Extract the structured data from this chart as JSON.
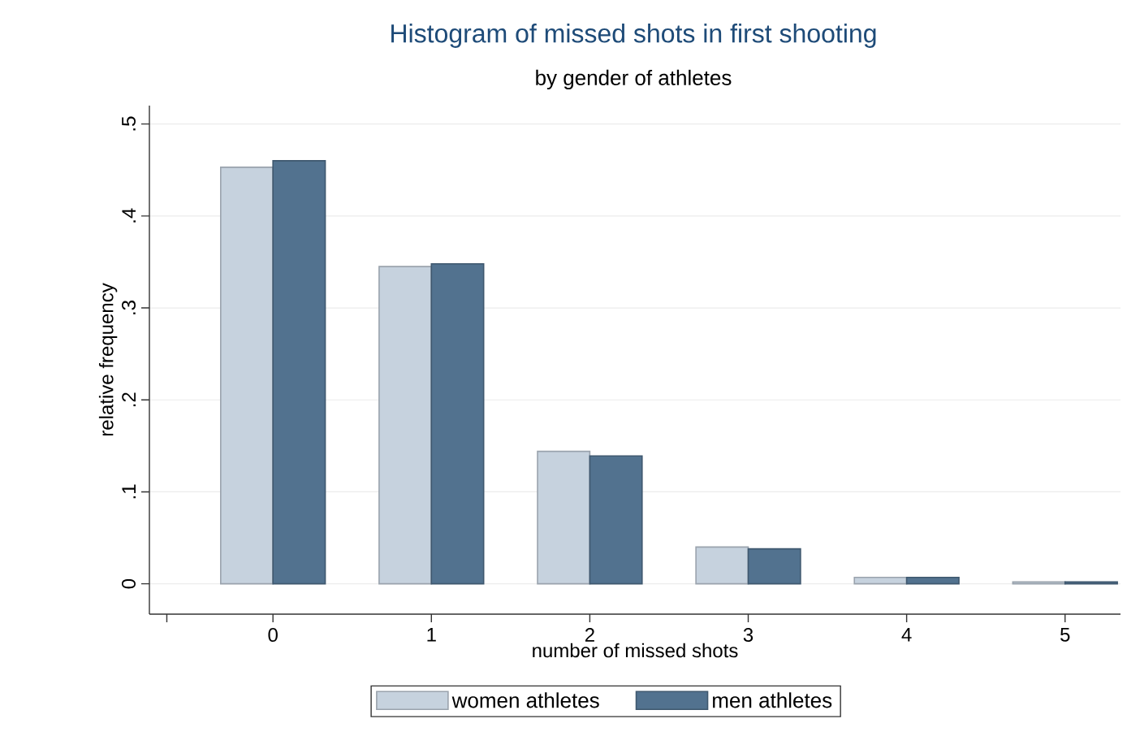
{
  "chart_data": {
    "type": "bar",
    "title": "Histogram of missed shots in first shooting",
    "subtitle": "by gender of athletes",
    "xlabel": "number of missed shots",
    "ylabel": "relative frequency",
    "x": [
      0,
      1,
      2,
      3,
      4,
      5
    ],
    "xlim": [
      -0.78,
      5.35
    ],
    "xticks": [
      {
        "value": -0.67,
        "label": null
      },
      0,
      1,
      2,
      3,
      4,
      5
    ],
    "ylim": [
      -0.033,
      0.52
    ],
    "yticks": [
      {
        "value": 0,
        "label": "0"
      },
      {
        "value": 0.1,
        "label": ".1"
      },
      {
        "value": 0.2,
        "label": ".2"
      },
      {
        "value": 0.3,
        "label": ".3"
      },
      {
        "value": 0.4,
        "label": ".4"
      },
      {
        "value": 0.5,
        "label": ".5"
      }
    ],
    "series": [
      {
        "name": "women athletes",
        "color": "#c6d2de",
        "values": [
          0.453,
          0.345,
          0.144,
          0.04,
          0.007,
          0.002
        ]
      },
      {
        "name": "men athletes",
        "color": "#52728f",
        "values": [
          0.46,
          0.348,
          0.139,
          0.038,
          0.007,
          0.002
        ]
      }
    ],
    "grid": "y",
    "legend": "bottom"
  }
}
